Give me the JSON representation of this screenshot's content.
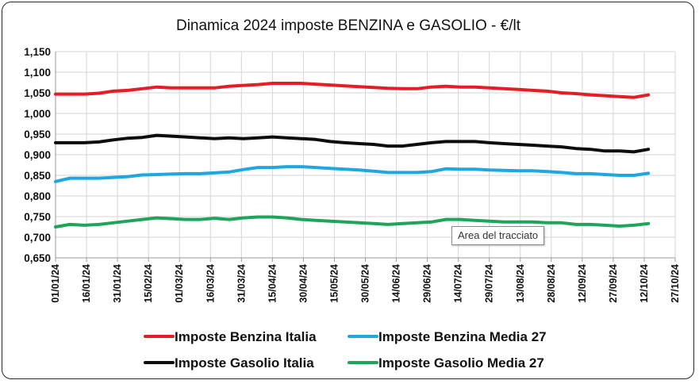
{
  "chart_data": {
    "type": "line",
    "title": "Dinamica 2024 imposte BENZINA e GASOLIO - €/lt",
    "xlabel": "",
    "ylabel": "",
    "ylim": [
      0.65,
      1.15
    ],
    "ytick_labels": [
      "1,150",
      "1,100",
      "1,050",
      "1,000",
      "0,950",
      "0,900",
      "0,850",
      "0,800",
      "0,750",
      "0,700",
      "0,650"
    ],
    "xtick_labels": [
      "01/01/24",
      "16/01/24",
      "31/01/24",
      "15/02/24",
      "01/03/24",
      "16/03/24",
      "31/03/24",
      "15/04/24",
      "30/04/24",
      "15/05/24",
      "30/05/24",
      "14/06/24",
      "29/06/24",
      "14/07/24",
      "29/07/24",
      "13/08/24",
      "28/08/24",
      "12/09/24",
      "27/09/24",
      "12/10/24",
      "27/10/24"
    ],
    "x_start": "2024-01-01",
    "x_end": "2024-10-27",
    "x": [
      "2024-01-01",
      "2024-01-08",
      "2024-01-15",
      "2024-01-22",
      "2024-01-29",
      "2024-02-05",
      "2024-02-12",
      "2024-02-19",
      "2024-02-26",
      "2024-03-04",
      "2024-03-11",
      "2024-03-18",
      "2024-03-25",
      "2024-04-01",
      "2024-04-08",
      "2024-04-15",
      "2024-04-22",
      "2024-04-29",
      "2024-05-06",
      "2024-05-13",
      "2024-05-20",
      "2024-05-27",
      "2024-06-03",
      "2024-06-10",
      "2024-06-17",
      "2024-06-24",
      "2024-07-01",
      "2024-07-08",
      "2024-07-15",
      "2024-07-22",
      "2024-07-29",
      "2024-08-05",
      "2024-08-12",
      "2024-08-19",
      "2024-08-26",
      "2024-09-02",
      "2024-09-09",
      "2024-09-16",
      "2024-09-23",
      "2024-09-30",
      "2024-10-07",
      "2024-10-14"
    ],
    "grid": true,
    "legend_position": "bottom",
    "series": [
      {
        "name": "Imposte Benzina Italia",
        "color": "#e41e26",
        "values": [
          1.047,
          1.047,
          1.047,
          1.049,
          1.054,
          1.056,
          1.06,
          1.064,
          1.062,
          1.062,
          1.062,
          1.062,
          1.066,
          1.068,
          1.07,
          1.073,
          1.073,
          1.073,
          1.071,
          1.069,
          1.067,
          1.065,
          1.063,
          1.061,
          1.06,
          1.06,
          1.064,
          1.066,
          1.064,
          1.064,
          1.062,
          1.06,
          1.058,
          1.056,
          1.054,
          1.05,
          1.048,
          1.045,
          1.043,
          1.041,
          1.039,
          1.045
        ]
      },
      {
        "name": "Imposte Benzina Media 27",
        "color": "#1fa7df",
        "values": [
          0.835,
          0.843,
          0.843,
          0.843,
          0.845,
          0.847,
          0.851,
          0.852,
          0.853,
          0.854,
          0.854,
          0.856,
          0.858,
          0.864,
          0.869,
          0.869,
          0.871,
          0.871,
          0.869,
          0.867,
          0.865,
          0.863,
          0.86,
          0.857,
          0.857,
          0.857,
          0.859,
          0.866,
          0.865,
          0.865,
          0.863,
          0.862,
          0.861,
          0.861,
          0.859,
          0.857,
          0.854,
          0.854,
          0.852,
          0.85,
          0.85,
          0.855
        ]
      },
      {
        "name": "Imposte Gasolio Italia",
        "color": "#0d0d0d",
        "values": [
          0.929,
          0.929,
          0.929,
          0.931,
          0.936,
          0.94,
          0.942,
          0.947,
          0.945,
          0.943,
          0.941,
          0.939,
          0.941,
          0.939,
          0.941,
          0.943,
          0.941,
          0.939,
          0.937,
          0.932,
          0.929,
          0.927,
          0.925,
          0.921,
          0.921,
          0.925,
          0.929,
          0.932,
          0.932,
          0.932,
          0.929,
          0.927,
          0.925,
          0.923,
          0.921,
          0.919,
          0.915,
          0.913,
          0.909,
          0.909,
          0.907,
          0.913
        ]
      },
      {
        "name": "Imposte Gasolio Media 27",
        "color": "#1fa55a",
        "values": [
          0.725,
          0.731,
          0.729,
          0.731,
          0.735,
          0.739,
          0.743,
          0.747,
          0.745,
          0.743,
          0.743,
          0.746,
          0.743,
          0.747,
          0.749,
          0.749,
          0.747,
          0.743,
          0.741,
          0.739,
          0.737,
          0.735,
          0.733,
          0.731,
          0.733,
          0.735,
          0.737,
          0.743,
          0.743,
          0.741,
          0.739,
          0.737,
          0.737,
          0.737,
          0.735,
          0.735,
          0.731,
          0.731,
          0.729,
          0.727,
          0.729,
          0.733
        ]
      }
    ]
  },
  "tooltip": "Area del tracciato"
}
